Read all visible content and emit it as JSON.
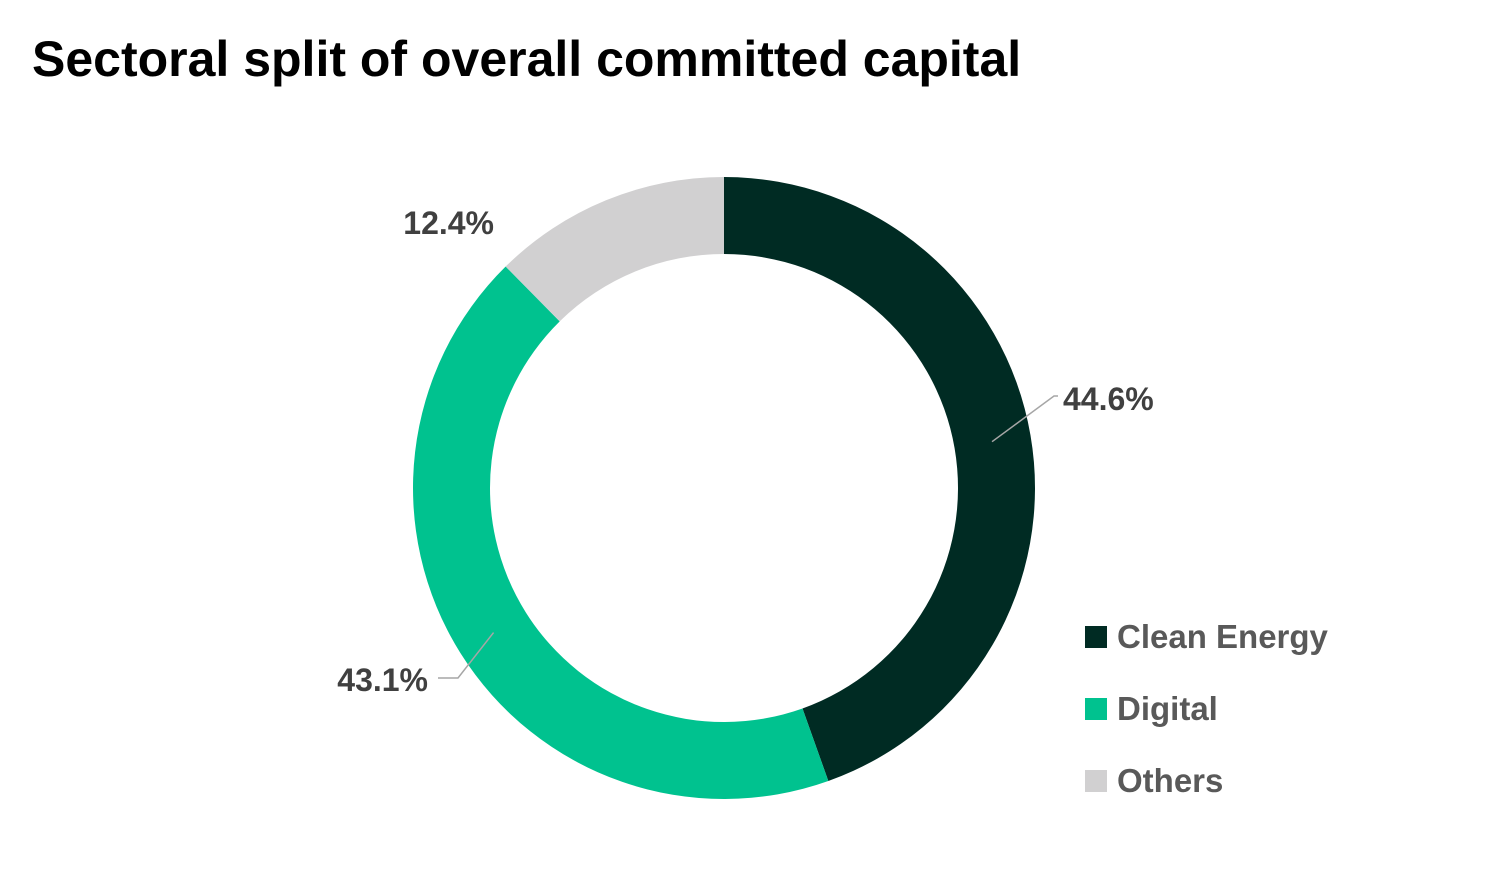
{
  "chart_data": {
    "type": "pie",
    "subtype": "donut",
    "title": "Sectoral split of overall committed capital",
    "unit": "%",
    "categories": [
      "Clean Energy",
      "Digital",
      "Others"
    ],
    "values": [
      44.6,
      43.1,
      12.4
    ],
    "labels": [
      "44.6%",
      "43.1%",
      "12.4%"
    ],
    "colors": [
      "#002b23",
      "#00c28f",
      "#d1d0d1"
    ],
    "start_angle": "12 o'clock",
    "direction": "clockwise",
    "legend": {
      "position": "right-bottom",
      "items": [
        "Clean Energy",
        "Digital",
        "Others"
      ]
    }
  }
}
